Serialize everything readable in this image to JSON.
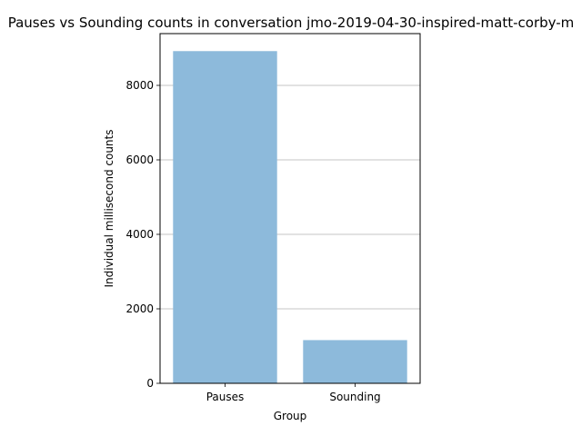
{
  "chart_data": {
    "type": "bar",
    "title": "Pauses vs Sounding counts in conversation jmo-2019-04-30-inspired-matt-corby-m",
    "xlabel": "Group",
    "ylabel": "Individual millisecond counts",
    "categories": [
      "Pauses",
      "Sounding"
    ],
    "values": [
      8920,
      1160
    ],
    "ylim": [
      0,
      9390
    ],
    "yticks": [
      0,
      2000,
      4000,
      6000,
      8000
    ],
    "grid": "horizontal",
    "bar_color": "#8dbadb"
  }
}
